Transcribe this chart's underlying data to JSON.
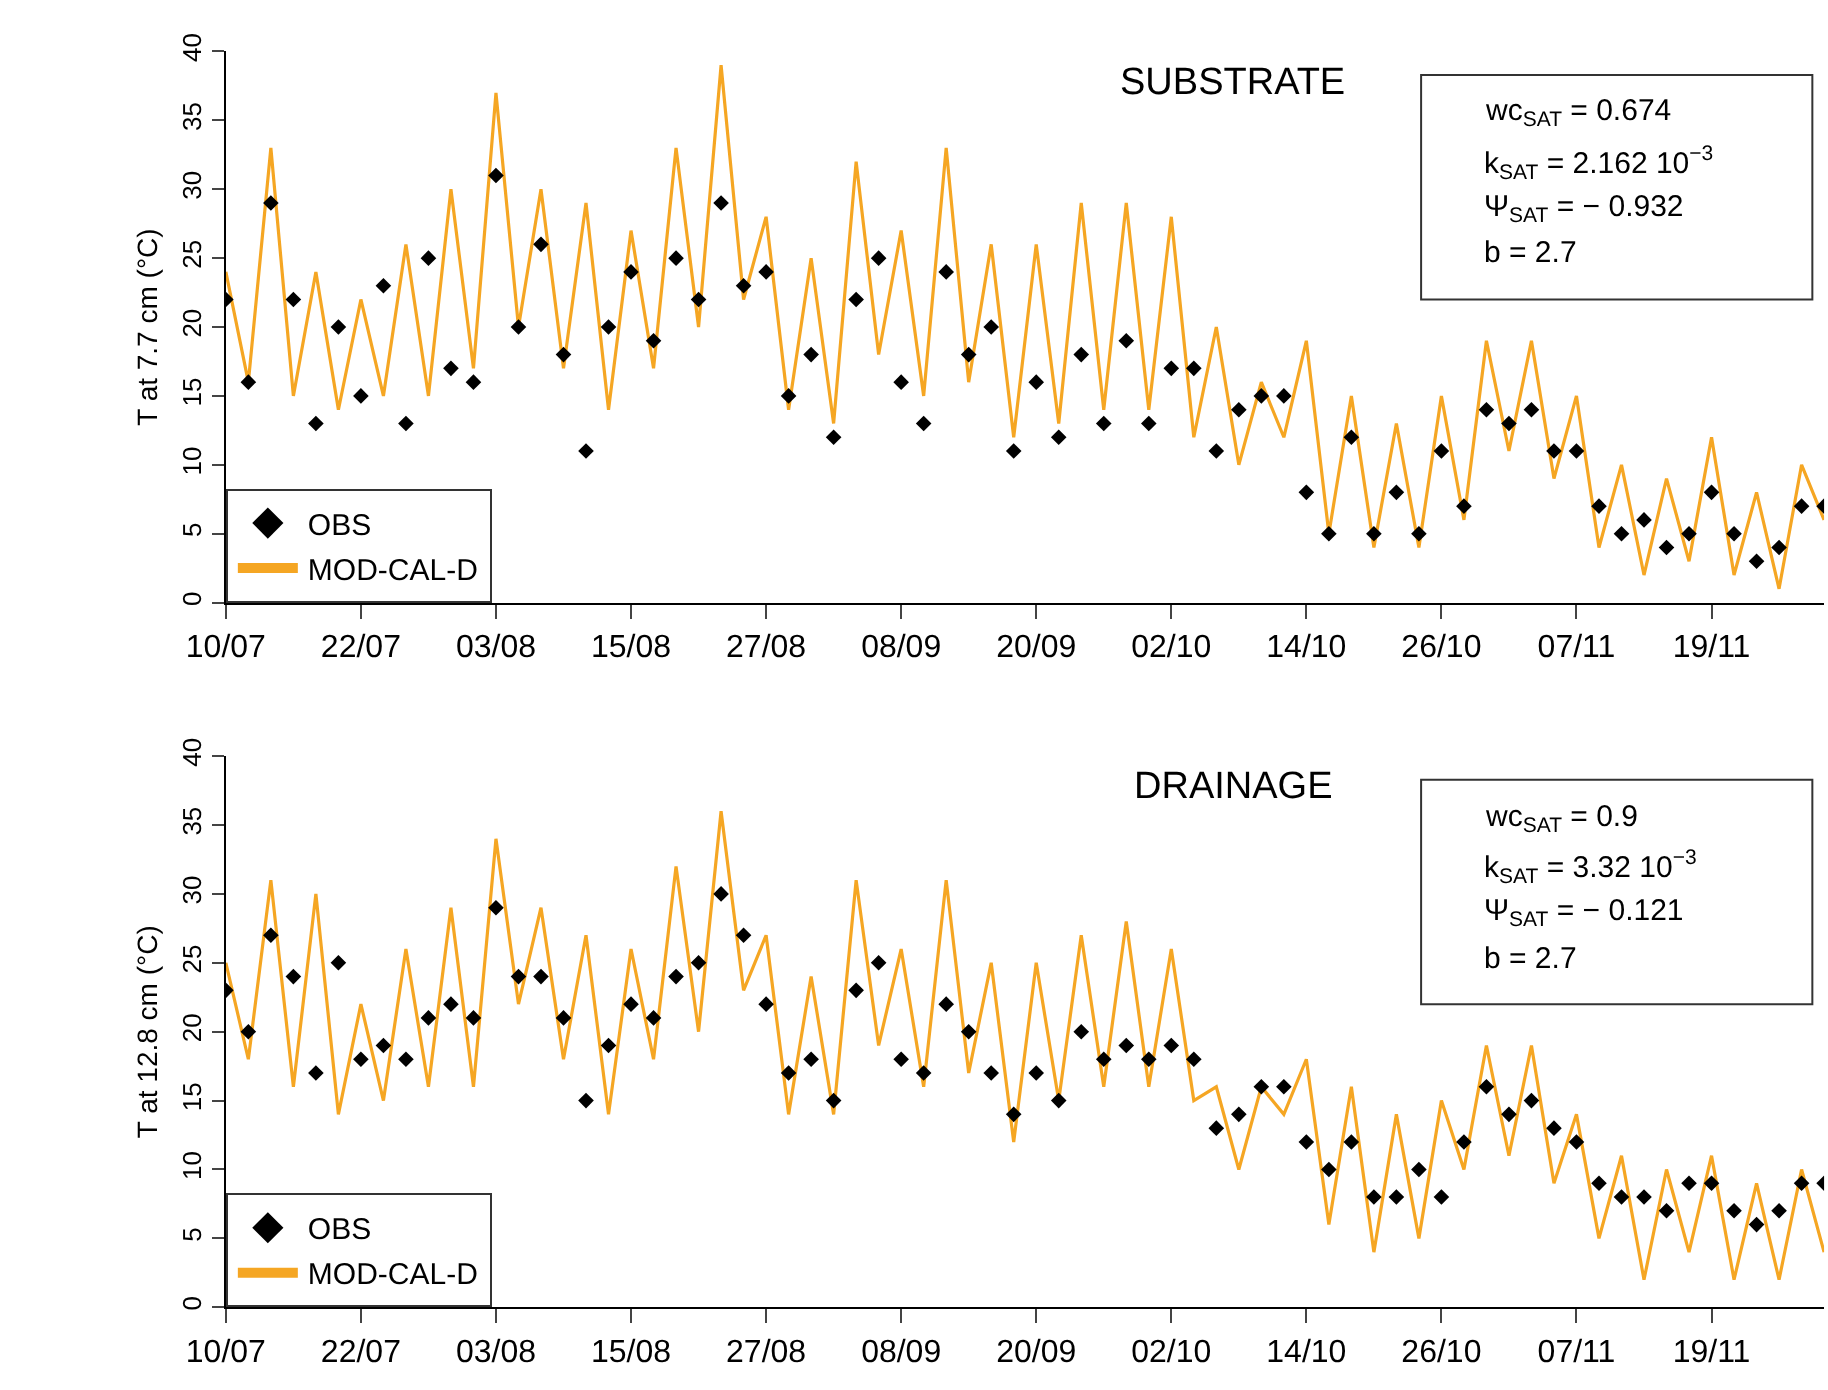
{
  "chart_data": [
    {
      "type": "line",
      "title": "SUBSTRATE",
      "ylabel": "T at 7.7 cm (°C)",
      "x": [
        "--07-10",
        "--07-12",
        "--07-14",
        "--07-16",
        "--07-18",
        "--07-20",
        "--07-22",
        "--07-24",
        "--07-26",
        "--07-28",
        "--07-30",
        "--08-01",
        "--08-03",
        "--08-05",
        "--08-07",
        "--08-09",
        "--08-11",
        "--08-13",
        "--08-15",
        "--08-17",
        "--08-19",
        "--08-21",
        "--08-23",
        "--08-25",
        "--08-27",
        "--08-29",
        "--08-31",
        "--09-02",
        "--09-04",
        "--09-06",
        "--09-08",
        "--09-10",
        "--09-12",
        "--09-14",
        "--09-16",
        "--09-18",
        "--09-20",
        "--09-22",
        "--09-24",
        "--09-26",
        "--09-28",
        "--09-30",
        "--10-02",
        "--10-04",
        "--10-06",
        "--10-08",
        "--10-10",
        "--10-12",
        "--10-14",
        "--10-16",
        "--10-18",
        "--10-20",
        "--10-22",
        "--10-24",
        "--10-26",
        "--10-28",
        "--10-30",
        "--11-01",
        "--11-03",
        "--11-05",
        "--11-07",
        "--11-09",
        "--11-11",
        "--11-13",
        "--11-15",
        "--11-17",
        "--11-19",
        "--11-21",
        "--11-23",
        "--11-25",
        "--11-27",
        "--11-29"
      ],
      "series": [
        {
          "name": "MOD-CAL-D",
          "marker": "none",
          "color": "#f5a623",
          "values": [
            24,
            16,
            33,
            15,
            24,
            14,
            22,
            15,
            26,
            15,
            30,
            17,
            37,
            20,
            30,
            17,
            29,
            14,
            27,
            17,
            33,
            20,
            39,
            22,
            28,
            14,
            25,
            13,
            32,
            18,
            27,
            15,
            33,
            16,
            26,
            12,
            26,
            13,
            29,
            14,
            29,
            14,
            28,
            12,
            20,
            10,
            16,
            12,
            19,
            5,
            15,
            4,
            13,
            4,
            15,
            6,
            19,
            11,
            19,
            9,
            15,
            4,
            10,
            2,
            9,
            3,
            12,
            2,
            8,
            1,
            10,
            6
          ]
        },
        {
          "name": "OBS",
          "type": "scatter",
          "marker": "diamond",
          "color": "#000000",
          "values": [
            22,
            16,
            29,
            22,
            13,
            20,
            15,
            23,
            13,
            25,
            17,
            16,
            31,
            20,
            26,
            18,
            11,
            20,
            24,
            19,
            25,
            22,
            29,
            23,
            24,
            15,
            18,
            12,
            22,
            25,
            16,
            13,
            24,
            18,
            20,
            11,
            16,
            12,
            18,
            13,
            19,
            13,
            17,
            17,
            11,
            14,
            15,
            15,
            8,
            5,
            12,
            5,
            8,
            5,
            11,
            7,
            14,
            13,
            14,
            11,
            11,
            7,
            5,
            6,
            4,
            5,
            8,
            5,
            3,
            4,
            7,
            7
          ]
        }
      ],
      "xlim": [
        "--07-10",
        "--11-29"
      ],
      "xticks": [
        {
          "value": "--07-10",
          "label": "10/07"
        },
        {
          "value": "--07-22",
          "label": "22/07"
        },
        {
          "value": "--08-03",
          "label": "03/08"
        },
        {
          "value": "--08-15",
          "label": "15/08"
        },
        {
          "value": "--08-27",
          "label": "27/08"
        },
        {
          "value": "--09-08",
          "label": "08/09"
        },
        {
          "value": "--09-20",
          "label": "20/09"
        },
        {
          "value": "--10-02",
          "label": "02/10"
        },
        {
          "value": "--10-14",
          "label": "14/10"
        },
        {
          "value": "--10-26",
          "label": "26/10"
        },
        {
          "value": "--11-07",
          "label": "07/11"
        },
        {
          "value": "--11-19",
          "label": "19/11"
        }
      ],
      "ylim": [
        0,
        40
      ],
      "yticks": [
        0,
        5,
        10,
        15,
        20,
        25,
        30,
        35,
        40
      ],
      "annotations": [
        "wc$_{SAT}$ = 0.674",
        "k$_{SAT}$ = 2.162 10$^{−3}$",
        "Ψ$_{SAT}$ = − 0.932",
        "b = 2.7"
      ],
      "legend": "bottom left"
    },
    {
      "type": "line",
      "title": "DRAINAGE",
      "ylabel": "T at 12.8 cm (°C)",
      "x": [
        "--07-10",
        "--07-12",
        "--07-14",
        "--07-16",
        "--07-18",
        "--07-20",
        "--07-22",
        "--07-24",
        "--07-26",
        "--07-28",
        "--07-30",
        "--08-01",
        "--08-03",
        "--08-05",
        "--08-07",
        "--08-09",
        "--08-11",
        "--08-13",
        "--08-15",
        "--08-17",
        "--08-19",
        "--08-21",
        "--08-23",
        "--08-25",
        "--08-27",
        "--08-29",
        "--08-31",
        "--09-02",
        "--09-04",
        "--09-06",
        "--09-08",
        "--09-10",
        "--09-12",
        "--09-14",
        "--09-16",
        "--09-18",
        "--09-20",
        "--09-22",
        "--09-24",
        "--09-26",
        "--09-28",
        "--09-30",
        "--10-02",
        "--10-04",
        "--10-06",
        "--10-08",
        "--10-10",
        "--10-12",
        "--10-14",
        "--10-16",
        "--10-18",
        "--10-20",
        "--10-22",
        "--10-24",
        "--10-26",
        "--10-28",
        "--10-30",
        "--11-01",
        "--11-03",
        "--11-05",
        "--11-07",
        "--11-09",
        "--11-11",
        "--11-13",
        "--11-15",
        "--11-17",
        "--11-19",
        "--11-21",
        "--11-23",
        "--11-25",
        "--11-27",
        "--11-29"
      ],
      "series": [
        {
          "name": "MOD-CAL-D",
          "marker": "none",
          "color": "#f5a623",
          "values": [
            25,
            18,
            31,
            16,
            30,
            14,
            22,
            15,
            26,
            16,
            29,
            16,
            34,
            22,
            29,
            18,
            27,
            14,
            26,
            18,
            32,
            20,
            36,
            23,
            27,
            14,
            24,
            14,
            31,
            19,
            26,
            16,
            31,
            17,
            25,
            12,
            25,
            15,
            27,
            16,
            28,
            16,
            26,
            15,
            16,
            10,
            16,
            14,
            18,
            6,
            16,
            4,
            14,
            5,
            15,
            10,
            19,
            11,
            19,
            9,
            14,
            5,
            11,
            2,
            10,
            4,
            11,
            2,
            9,
            2,
            10,
            4
          ]
        },
        {
          "name": "OBS",
          "type": "scatter",
          "marker": "diamond",
          "color": "#000000",
          "values": [
            23,
            20,
            27,
            24,
            17,
            25,
            18,
            19,
            18,
            21,
            22,
            21,
            29,
            24,
            24,
            21,
            15,
            19,
            22,
            21,
            24,
            25,
            30,
            27,
            22,
            17,
            18,
            15,
            23,
            25,
            18,
            17,
            22,
            20,
            17,
            14,
            17,
            15,
            20,
            18,
            19,
            18,
            19,
            18,
            13,
            14,
            16,
            16,
            12,
            10,
            12,
            8,
            8,
            10,
            8,
            12,
            16,
            14,
            15,
            13,
            12,
            9,
            8,
            8,
            7,
            9,
            9,
            7,
            6,
            7,
            9,
            9
          ]
        }
      ],
      "xlim": [
        "--07-10",
        "--11-29"
      ],
      "xticks": [
        {
          "value": "--07-10",
          "label": "10/07"
        },
        {
          "value": "--07-22",
          "label": "22/07"
        },
        {
          "value": "--08-03",
          "label": "03/08"
        },
        {
          "value": "--08-15",
          "label": "15/08"
        },
        {
          "value": "--08-27",
          "label": "27/08"
        },
        {
          "value": "--09-08",
          "label": "08/09"
        },
        {
          "value": "--09-20",
          "label": "20/09"
        },
        {
          "value": "--10-02",
          "label": "02/10"
        },
        {
          "value": "--10-14",
          "label": "14/10"
        },
        {
          "value": "--10-26",
          "label": "26/10"
        },
        {
          "value": "--11-07",
          "label": "07/11"
        },
        {
          "value": "--11-19",
          "label": "19/11"
        }
      ],
      "ylim": [
        0,
        40
      ],
      "yticks": [
        0,
        5,
        10,
        15,
        20,
        25,
        30,
        35,
        40
      ],
      "annotations": [
        "wc$_{SAT}$ = 0.9",
        "k$_{SAT}$ = 3.32 10$^{−3}$",
        "Ψ$_{SAT}$ = − 0.121",
        "b = 2.7"
      ],
      "legend": "bottom left"
    }
  ]
}
